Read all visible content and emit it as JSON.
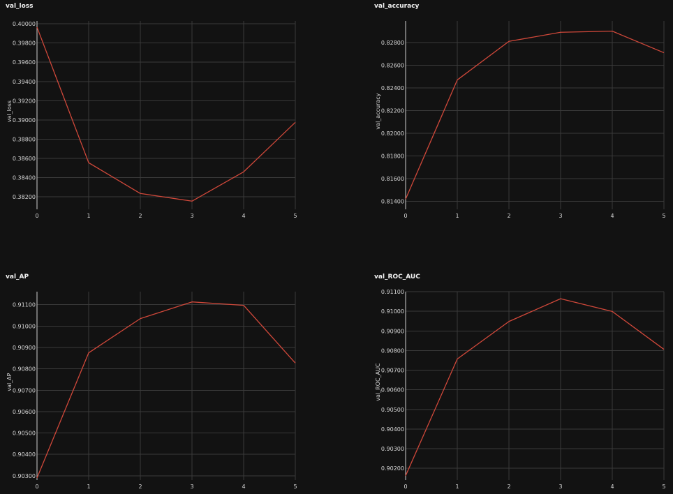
{
  "colors": {
    "background": "#121212",
    "series": "#d0483a",
    "grid": "#3a3a3a",
    "text": "#d9d9d9"
  },
  "chart_data": [
    {
      "type": "line",
      "title": "val_loss",
      "xlabel": "",
      "ylabel": "val_loss",
      "x": [
        0,
        1,
        2,
        3,
        4,
        5
      ],
      "series": [
        {
          "values": [
            0.39965,
            0.38555,
            0.38235,
            0.38155,
            0.3846,
            0.38975
          ]
        }
      ],
      "xlim": [
        0,
        5
      ],
      "ylim": [
        0.3807,
        0.4003
      ],
      "xticks": [
        "0",
        "1",
        "2",
        "3",
        "4",
        "5"
      ],
      "yticks": [
        0.382,
        0.384,
        0.386,
        0.388,
        0.39,
        0.392,
        0.394,
        0.396,
        0.398,
        0.4
      ],
      "ytick_labels": [
        "0.38200",
        "0.38400",
        "0.38600",
        "0.38800",
        "0.39000",
        "0.39200",
        "0.39400",
        "0.39600",
        "0.39800",
        "0.40000"
      ],
      "grid": true
    },
    {
      "type": "line",
      "title": "val_accuracy",
      "xlabel": "",
      "ylabel": "val_accuracy",
      "x": [
        0,
        1,
        2,
        3,
        4,
        5
      ],
      "series": [
        {
          "values": [
            0.8142,
            0.8247,
            0.8281,
            0.8289,
            0.829,
            0.8271
          ]
        }
      ],
      "xlim": [
        0,
        5
      ],
      "ylim": [
        0.8133,
        0.8299
      ],
      "xticks": [
        "0",
        "1",
        "2",
        "3",
        "4",
        "5"
      ],
      "yticks": [
        0.814,
        0.816,
        0.818,
        0.82,
        0.822,
        0.824,
        0.826,
        0.828
      ],
      "ytick_labels": [
        "0.81400",
        "0.81600",
        "0.81800",
        "0.82000",
        "0.82200",
        "0.82400",
        "0.82600",
        "0.82800"
      ],
      "grid": true
    },
    {
      "type": "line",
      "title": "val_AP",
      "xlabel": "",
      "ylabel": "val_AP",
      "x": [
        0,
        1,
        2,
        3,
        4,
        5
      ],
      "series": [
        {
          "values": [
            0.9029,
            0.90875,
            0.91035,
            0.91113,
            0.91097,
            0.90827
          ]
        }
      ],
      "xlim": [
        0,
        5
      ],
      "ylim": [
        0.9028,
        0.91161
      ],
      "xticks": [
        "0",
        "1",
        "2",
        "3",
        "4",
        "5"
      ],
      "yticks": [
        0.903,
        0.904,
        0.905,
        0.906,
        0.907,
        0.908,
        0.909,
        0.91,
        0.911
      ],
      "ytick_labels": [
        "0.90300",
        "0.90400",
        "0.90500",
        "0.90600",
        "0.90700",
        "0.90800",
        "0.90900",
        "0.91000",
        "0.91100"
      ],
      "grid": true
    },
    {
      "type": "line",
      "title": "val_ROC_AUC",
      "xlabel": "",
      "ylabel": "val_ROC_AUC",
      "x": [
        0,
        1,
        2,
        3,
        4,
        5
      ],
      "series": [
        {
          "values": [
            0.90162,
            0.90757,
            0.90948,
            0.91064,
            0.90999,
            0.90806
          ]
        }
      ],
      "xlim": [
        0,
        5
      ],
      "ylim": [
        0.9014,
        0.911
      ],
      "xticks": [
        "0",
        "1",
        "2",
        "3",
        "4",
        "5"
      ],
      "yticks": [
        0.902,
        0.903,
        0.904,
        0.905,
        0.906,
        0.907,
        0.908,
        0.909,
        0.91,
        0.911
      ],
      "ytick_labels": [
        "0.90200",
        "0.90300",
        "0.90400",
        "0.90500",
        "0.90600",
        "0.90700",
        "0.90800",
        "0.90900",
        "0.91000",
        "0.91100"
      ],
      "grid": true
    }
  ]
}
